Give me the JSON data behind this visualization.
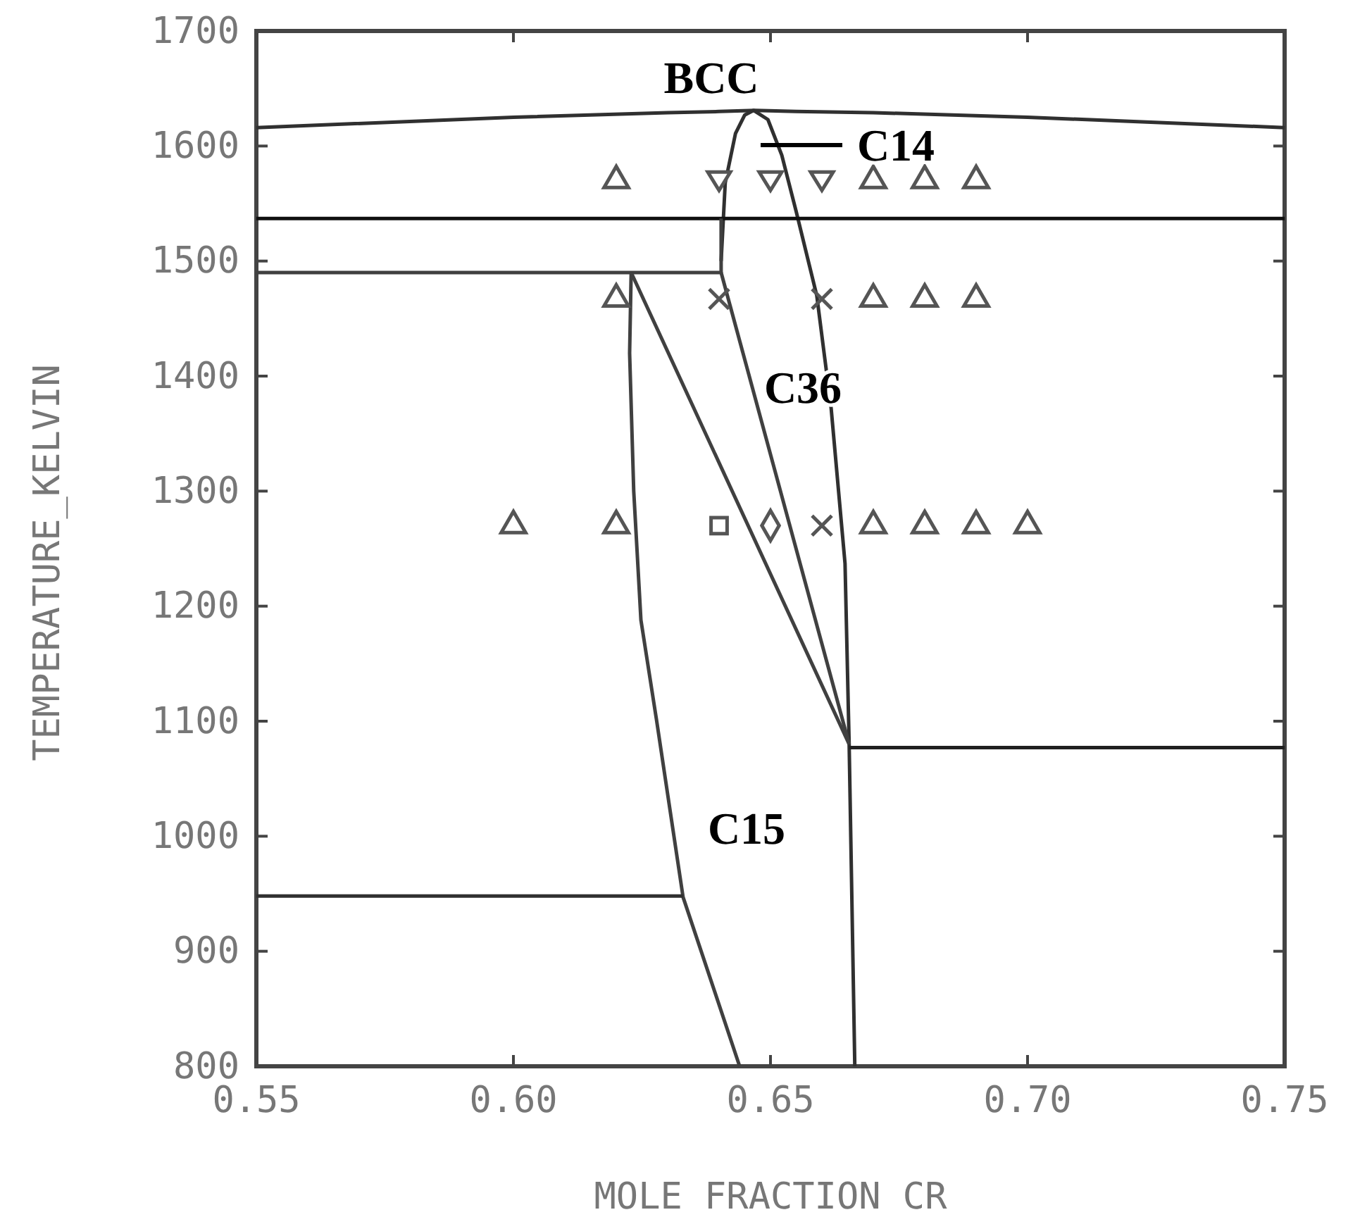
{
  "chart_data": {
    "type": "line",
    "xlabel": "MOLE FRACTION CR",
    "ylabel": "TEMPERATURE_KELVIN",
    "xlim": [
      0.55,
      0.75
    ],
    "ylim": [
      800,
      1700
    ],
    "xticks": [
      0.55,
      {
        "value": 0.6,
        "label": "0.60"
      },
      0.65,
      {
        "value": 0.7,
        "label": "0.70"
      },
      0.75
    ],
    "yticks": [
      800,
      900,
      1000,
      1100,
      1200,
      1300,
      1400,
      1500,
      1600,
      1700
    ],
    "marker": "none",
    "line_style": "solid",
    "grid": false,
    "series": [
      {
        "color": "#303030",
        "x": [
          0.55,
          0.6,
          0.63,
          0.64,
          0.647,
          0.655,
          0.67,
          0.7,
          0.75
        ],
        "values": [
          1616,
          1625,
          1629,
          1630,
          1631,
          1630,
          1629,
          1625,
          1616
        ]
      },
      {
        "color": "#303030",
        "x": [
          0.6404,
          0.6412,
          0.6432,
          0.645,
          0.6467,
          0.6495,
          0.6522,
          0.655,
          0.659,
          0.6618,
          0.6645,
          0.6653,
          0.6664
        ],
        "values": [
          1500,
          1568,
          1611,
          1627,
          1631,
          1623,
          1592,
          1543,
          1470,
          1372,
          1237,
          1080,
          800
        ]
      },
      {
        "color": "#101010",
        "x": [
          0.55,
          0.75
        ],
        "values": [
          1537,
          1537
        ]
      },
      {
        "color": "#404040",
        "x": [
          0.55,
          0.6404,
          0.6404
        ],
        "values": [
          1490,
          1490,
          1537
        ]
      },
      {
        "color": "#404040",
        "x": [
          0.6229,
          0.6226,
          0.6234,
          0.6248,
          0.6278,
          0.633,
          0.644
        ],
        "values": [
          1490,
          1420,
          1300,
          1188,
          1102,
          947,
          800
        ]
      },
      {
        "color": "#404040",
        "x": [
          0.6229,
          0.6653
        ],
        "values": [
          1490,
          1080
        ]
      },
      {
        "color": "#404040",
        "x": [
          0.6404,
          0.6653
        ],
        "values": [
          1490,
          1080
        ]
      },
      {
        "color": "#202020",
        "x": [
          0.6653,
          0.75
        ],
        "values": [
          1077,
          1077
        ]
      },
      {
        "color": "#303030",
        "x": [
          0.55,
          0.633
        ],
        "values": [
          948,
          948
        ]
      },
      {
        "type": "scatter",
        "marker": "triangle",
        "color": "#555555",
        "x": [
          0.62,
          0.67,
          0.68,
          0.69,
          0.62,
          0.67,
          0.68,
          0.69,
          0.6,
          0.62,
          0.67,
          0.68,
          0.69,
          0.7
        ],
        "values": [
          1570,
          1570,
          1570,
          1570,
          1467,
          1467,
          1467,
          1467,
          1270,
          1270,
          1270,
          1270,
          1270,
          1270
        ]
      },
      {
        "type": "scatter",
        "marker": "triangle-down",
        "color": "#555555",
        "x": [
          0.64,
          0.65,
          0.66
        ],
        "values": [
          1570,
          1570,
          1570
        ]
      },
      {
        "type": "scatter",
        "marker": "cross",
        "color": "#555555",
        "x": [
          0.64,
          0.66,
          0.66
        ],
        "values": [
          1467,
          1467,
          1270
        ]
      },
      {
        "type": "scatter",
        "marker": "square",
        "color": "#555555",
        "x": [
          0.64
        ],
        "values": [
          1270
        ]
      },
      {
        "type": "scatter",
        "marker": "diamond",
        "color": "#555555",
        "x": [
          0.65
        ],
        "values": [
          1270
        ]
      }
    ],
    "annotations": [
      "BCC",
      "C14",
      "C36",
      "C15"
    ]
  }
}
